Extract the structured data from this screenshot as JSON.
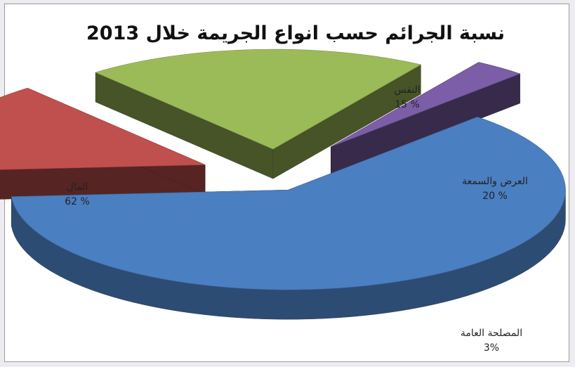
{
  "chart_data": {
    "type": "pie",
    "title": "نسبة الجرائم حسب انواع الجريمة خلال 2013",
    "slices": [
      {
        "name": "المال",
        "value": 62,
        "value_label": "62 %",
        "color": "#4a7fc1"
      },
      {
        "name": "النفس",
        "value": 15,
        "value_label": "15 %",
        "color": "#c0504d"
      },
      {
        "name": "العرض والسمعة",
        "value": 20,
        "value_label": "20 %",
        "color": "#9bbb59"
      },
      {
        "name": "المصلحة العامة",
        "value": 3,
        "value_label": "3%",
        "color": "#7b5ea7"
      }
    ],
    "style": "3d-exploded"
  }
}
